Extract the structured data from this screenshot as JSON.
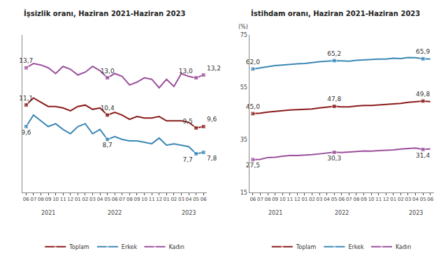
{
  "chart_data": [
    {
      "type": "line",
      "title": "İşsizlik oranı, Haziran 2021-Haziran 2023",
      "categories": [
        "06",
        "07",
        "08",
        "09",
        "10",
        "11",
        "12",
        "01",
        "02",
        "03",
        "04",
        "05",
        "06",
        "07",
        "08",
        "09",
        "10",
        "11",
        "12",
        "01",
        "02",
        "03",
        "04",
        "05",
        "06"
      ],
      "series": [
        {
          "name": "Toplam",
          "color": "#8b1a1a",
          "values": [
            11.1,
            11.6,
            11.3,
            11.0,
            11.0,
            10.9,
            10.7,
            11.0,
            11.1,
            10.8,
            10.9,
            10.4,
            10.6,
            10.4,
            10.1,
            10.3,
            10.2,
            10.2,
            10.3,
            10.0,
            10.0,
            10.0,
            9.9,
            9.5,
            9.6
          ],
          "value_labels": [
            "11,1",
            null,
            null,
            null,
            null,
            null,
            null,
            null,
            null,
            null,
            null,
            "10,4",
            null,
            null,
            null,
            null,
            null,
            null,
            null,
            null,
            null,
            null,
            null,
            "9,5",
            "9,6"
          ]
        },
        {
          "name": "Erkek",
          "color": "#3a87b5",
          "values": [
            9.6,
            10.4,
            10.0,
            9.6,
            9.8,
            9.4,
            9.1,
            9.6,
            9.8,
            9.1,
            9.4,
            8.7,
            8.9,
            8.7,
            8.6,
            8.6,
            8.5,
            8.4,
            8.8,
            8.3,
            8.4,
            8.3,
            8.2,
            7.7,
            7.8
          ],
          "value_labels": [
            "9,6",
            null,
            null,
            null,
            null,
            null,
            null,
            null,
            null,
            null,
            null,
            "8,7",
            null,
            null,
            null,
            null,
            null,
            null,
            null,
            null,
            null,
            null,
            null,
            "7,7",
            "7,8"
          ]
        },
        {
          "name": "Kadın",
          "color": "#9b4f9b",
          "values": [
            13.7,
            14.0,
            13.9,
            13.7,
            13.3,
            13.8,
            13.6,
            13.2,
            13.4,
            13.8,
            13.5,
            13.0,
            13.3,
            13.1,
            12.5,
            12.7,
            13.0,
            12.9,
            12.3,
            12.9,
            12.4,
            13.3,
            13.1,
            13.0,
            13.2
          ],
          "value_labels": [
            "13,7",
            null,
            null,
            null,
            null,
            null,
            null,
            null,
            null,
            null,
            null,
            "13,0",
            null,
            null,
            null,
            null,
            null,
            null,
            null,
            null,
            null,
            null,
            null,
            "13,0",
            "13,2"
          ]
        }
      ],
      "ylim": [
        5,
        16
      ],
      "tick_labels": "x",
      "data_labels": true,
      "legend": "bottom",
      "annotations": [
        {
          "text": "2021",
          "x": 3
        },
        {
          "text": "2022",
          "x": 12
        },
        {
          "text": "2023",
          "x": 22
        }
      ]
    },
    {
      "type": "line",
      "title": "İstihdam oranı, Haziran 2021-Haziran 2023",
      "y_label": "(%)",
      "categories": [
        "06",
        "07",
        "08",
        "09",
        "10",
        "11",
        "12",
        "01",
        "02",
        "03",
        "04",
        "05",
        "06",
        "07",
        "08",
        "09",
        "10",
        "11",
        "12",
        "01",
        "02",
        "03",
        "04",
        "05",
        "06"
      ],
      "series": [
        {
          "name": "Toplam",
          "color": "#8b1a1a",
          "values": [
            45.0,
            45.2,
            45.6,
            45.9,
            46.1,
            46.4,
            46.5,
            46.6,
            46.8,
            47.2,
            47.5,
            47.8,
            47.6,
            47.6,
            47.9,
            48.1,
            48.1,
            48.3,
            48.4,
            48.8,
            48.9,
            49.3,
            49.5,
            49.8,
            49.6
          ],
          "value_labels": [
            "45,0",
            null,
            null,
            null,
            null,
            null,
            null,
            null,
            null,
            null,
            null,
            "47,8",
            null,
            null,
            null,
            null,
            null,
            null,
            null,
            null,
            null,
            null,
            null,
            "49,8",
            null
          ]
        },
        {
          "name": "Erkek",
          "color": "#3a87b5",
          "values": [
            62.0,
            62.4,
            62.9,
            63.3,
            63.5,
            63.8,
            64.0,
            64.1,
            64.5,
            64.8,
            65.0,
            65.2,
            65.1,
            65.0,
            65.3,
            65.5,
            65.6,
            65.8,
            65.8,
            66.1,
            66.0,
            66.4,
            66.3,
            65.9,
            65.8
          ],
          "value_labels": [
            "62,0",
            null,
            null,
            null,
            null,
            null,
            null,
            null,
            null,
            null,
            null,
            "65,2",
            null,
            null,
            null,
            null,
            null,
            null,
            null,
            null,
            null,
            null,
            null,
            "65,9",
            null
          ]
        },
        {
          "name": "Kadın",
          "color": "#9b4f9b",
          "values": [
            27.5,
            27.6,
            28.3,
            28.4,
            28.8,
            29.1,
            29.1,
            29.2,
            29.4,
            29.7,
            30.0,
            30.3,
            30.2,
            30.3,
            30.6,
            30.8,
            30.7,
            30.9,
            31.0,
            31.2,
            31.5,
            31.8,
            31.9,
            31.4,
            31.6
          ],
          "value_labels": [
            "27,5",
            null,
            null,
            null,
            null,
            null,
            null,
            null,
            null,
            null,
            null,
            "30,3",
            null,
            null,
            null,
            null,
            null,
            null,
            null,
            null,
            null,
            null,
            null,
            "31,4",
            null
          ]
        }
      ],
      "ylim": [
        15,
        75
      ],
      "yticks": [
        15,
        35,
        55,
        75
      ],
      "data_labels": true,
      "legend": "bottom",
      "annotations": [
        {
          "text": "2021",
          "x": 3
        },
        {
          "text": "2022",
          "x": 12
        },
        {
          "text": "2023",
          "x": 22
        }
      ]
    }
  ]
}
